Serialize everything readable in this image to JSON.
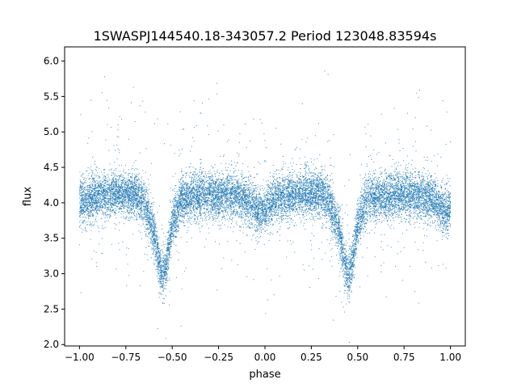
{
  "chart_data": {
    "type": "scatter",
    "title": "1SWASPJ144540.18-343057.2 Period 123048.83594s",
    "xlabel": "phase",
    "ylabel": "flux",
    "xlim": [
      -1.08,
      1.08
    ],
    "ylim": [
      1.98,
      6.2
    ],
    "xticks": [
      -1.0,
      -0.75,
      -0.5,
      -0.25,
      0.0,
      0.25,
      0.5,
      0.75,
      1.0
    ],
    "xtick_labels": [
      "−1.00",
      "−0.75",
      "−0.50",
      "−0.25",
      "0.00",
      "0.25",
      "0.50",
      "0.75",
      "1.00"
    ],
    "yticks": [
      2.0,
      2.5,
      3.0,
      3.5,
      4.0,
      4.5,
      5.0,
      5.5,
      6.0
    ],
    "ytick_labels": [
      "2.0",
      "2.5",
      "3.0",
      "3.5",
      "4.0",
      "4.5",
      "5.0",
      "5.5",
      "6.0"
    ],
    "grid": false,
    "marker_color": "#1f77b4",
    "series": [
      {
        "profile": {
          "phase": [
            -1.0,
            -0.9,
            -0.8,
            -0.7,
            -0.65,
            -0.6,
            -0.57,
            -0.55,
            -0.53,
            -0.5,
            -0.45,
            -0.3,
            -0.15,
            -0.08,
            -0.05,
            -0.02,
            0.0,
            0.05,
            0.15,
            0.3,
            0.35,
            0.4,
            0.43,
            0.45,
            0.47,
            0.5,
            0.55,
            0.7,
            0.85,
            0.92,
            0.95,
            0.98,
            1.0
          ],
          "flux_median": [
            4.0,
            4.1,
            4.12,
            4.12,
            4.0,
            3.6,
            3.15,
            2.95,
            3.15,
            3.7,
            4.05,
            4.12,
            4.1,
            4.02,
            3.9,
            3.85,
            3.9,
            4.05,
            4.12,
            4.12,
            4.0,
            3.6,
            3.15,
            2.95,
            3.15,
            3.7,
            4.05,
            4.12,
            4.1,
            4.02,
            3.9,
            3.85,
            3.95
          ]
        },
        "scatter_sigma": 0.16,
        "outlier_fraction": 0.05,
        "n_points": 15000
      }
    ]
  }
}
